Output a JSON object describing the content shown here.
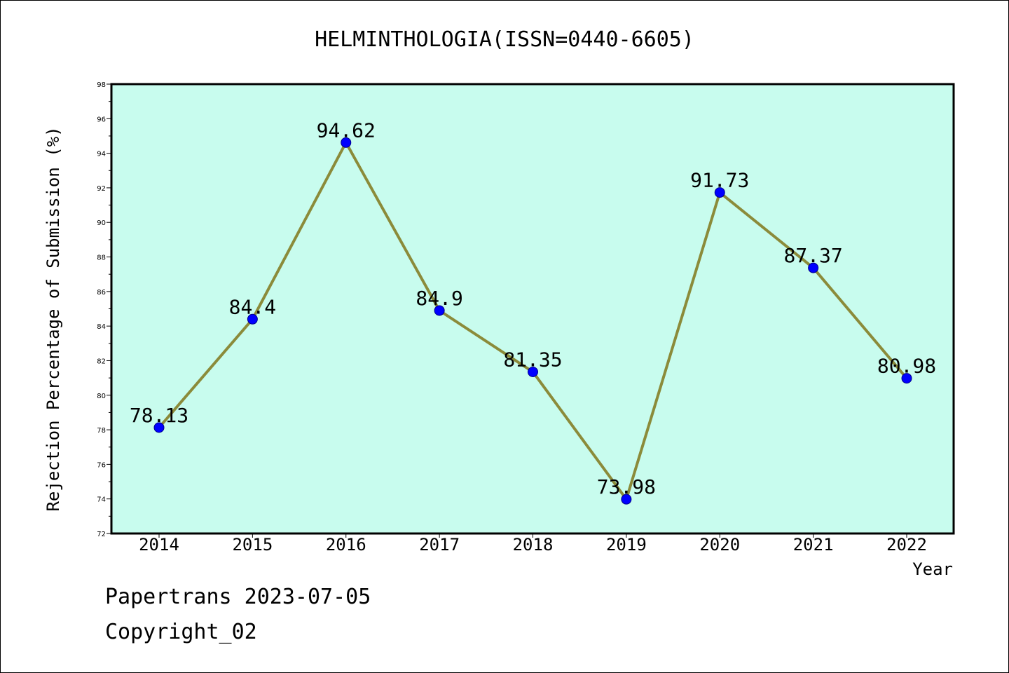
{
  "chart_data": {
    "type": "line",
    "title": "HELMINTHOLOGIA(ISSN=0440-6605)",
    "xlabel": "Year",
    "ylabel": "Rejection Percentage of Submission (%)",
    "categories": [
      "2014",
      "2015",
      "2016",
      "2017",
      "2018",
      "2019",
      "2020",
      "2021",
      "2022"
    ],
    "values": [
      78.13,
      84.4,
      94.62,
      84.9,
      81.35,
      73.98,
      91.73,
      87.37,
      80.98
    ],
    "data_labels": [
      "78.13",
      "84.4",
      "94.62",
      "84.9",
      "81.35",
      "73.98",
      "91.73",
      "87.37",
      "80.98"
    ],
    "ylim": [
      72,
      98
    ],
    "yticks": [
      "72",
      "74",
      "76",
      "78",
      "80",
      "82",
      "84",
      "86",
      "88",
      "90",
      "92",
      "94",
      "96",
      "98"
    ],
    "grid": false,
    "colors": {
      "plot_background": "#c8fcee",
      "line": "#8b8b3a",
      "marker": "#0000ff"
    }
  },
  "footer": {
    "line1": "Papertrans 2023-07-05",
    "line2": "Copyright_02"
  }
}
